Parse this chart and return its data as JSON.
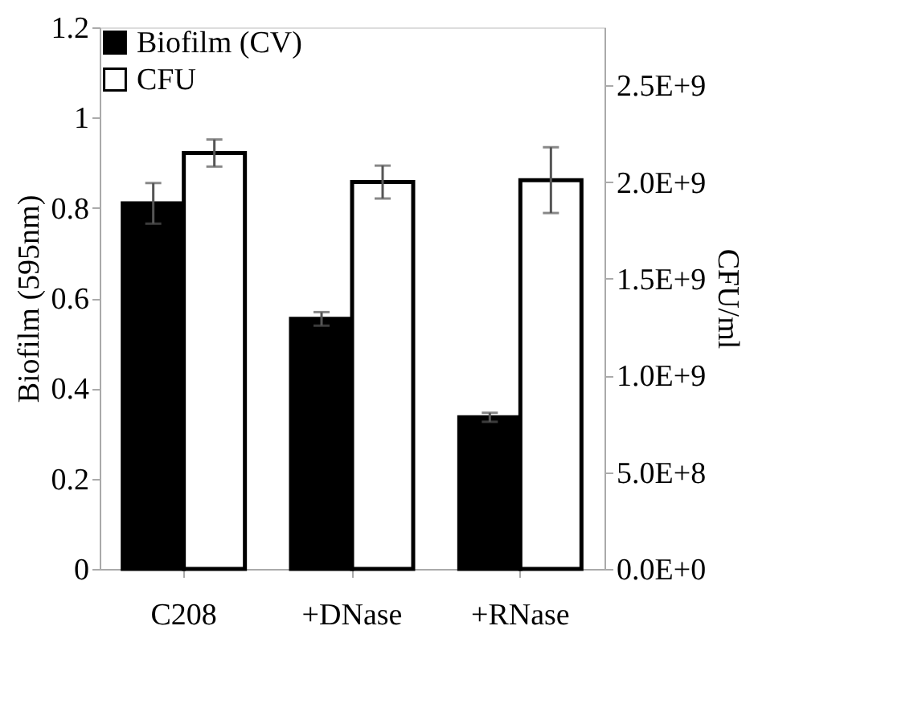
{
  "chart_data": {
    "type": "bar",
    "ylabel": "Biofilm (595nm)",
    "y2label": "CFU/ml",
    "categories": [
      "C208",
      "+DNase",
      "+RNase"
    ],
    "series": [
      {
        "name": "Biofilm (CV)",
        "color": "#000000",
        "values": [
          0.81,
          0.554,
          0.336
        ],
        "errors": [
          0.045,
          0.015,
          0.01
        ]
      },
      {
        "name": "CFU",
        "color": "#ffffff",
        "axis": "y2",
        "values": [
          2150000000.0,
          2000000000.0,
          2010000000.0
        ],
        "errors": [
          70000000.0,
          85000000.0,
          170000000.0
        ]
      }
    ],
    "ylim": [
      0,
      1.2
    ],
    "yticks": [
      0,
      0.2,
      0.4,
      0.6,
      0.8,
      1,
      1.2
    ],
    "y2lim": [
      0,
      2800000000.0
    ],
    "y2ticks": [
      {
        "value": 0,
        "label": "0.0E+0"
      },
      {
        "value": 500000000.0,
        "label": "5.0E+8"
      },
      {
        "value": 1000000000.0,
        "label": "1.0E+9"
      },
      {
        "value": 1500000000.0,
        "label": "1.5E+9"
      },
      {
        "value": 2000000000.0,
        "label": "2.0E+9"
      },
      {
        "value": 2500000000.0,
        "label": "2.5E+9"
      }
    ],
    "grid": false,
    "legend": "top left"
  }
}
